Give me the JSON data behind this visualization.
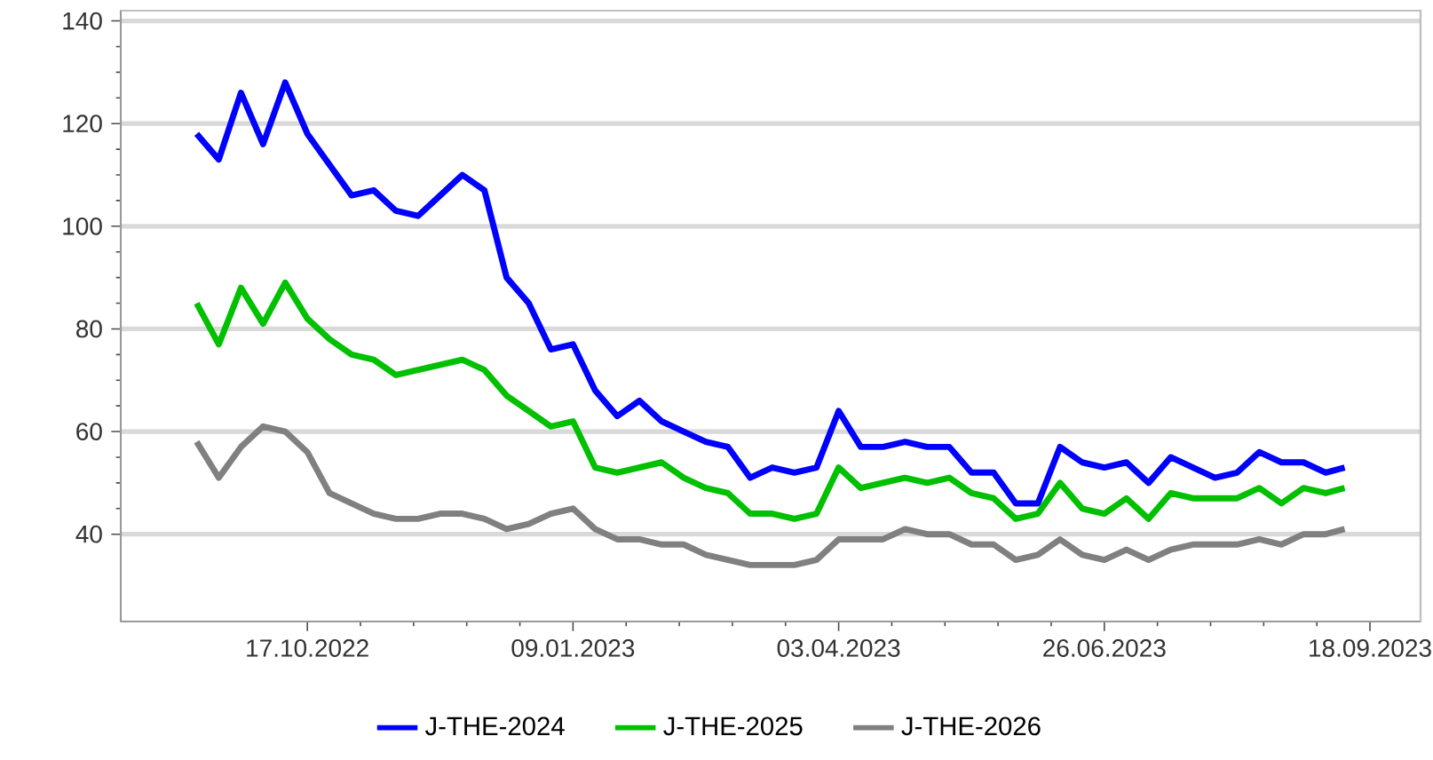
{
  "chart_data": {
    "type": "line",
    "x": [
      "2022-09-12",
      "2022-09-19",
      "2022-09-26",
      "2022-10-03",
      "2022-10-10",
      "2022-10-17",
      "2022-10-24",
      "2022-10-31",
      "2022-11-07",
      "2022-11-14",
      "2022-11-21",
      "2022-11-28",
      "2022-12-05",
      "2022-12-12",
      "2022-12-19",
      "2022-12-26",
      "2023-01-02",
      "2023-01-09",
      "2023-01-16",
      "2023-01-23",
      "2023-01-30",
      "2023-02-06",
      "2023-02-13",
      "2023-02-20",
      "2023-02-27",
      "2023-03-06",
      "2023-03-13",
      "2023-03-20",
      "2023-03-27",
      "2023-04-03",
      "2023-04-10",
      "2023-04-17",
      "2023-04-24",
      "2023-05-01",
      "2023-05-08",
      "2023-05-15",
      "2023-05-22",
      "2023-05-29",
      "2023-06-05",
      "2023-06-12",
      "2023-06-19",
      "2023-06-26",
      "2023-07-03",
      "2023-07-10",
      "2023-07-17",
      "2023-07-24",
      "2023-07-31",
      "2023-08-07",
      "2023-08-14",
      "2023-08-21",
      "2023-08-28",
      "2023-09-04",
      "2023-09-10"
    ],
    "series": [
      {
        "name": "J-THE-2024",
        "color": "#0000ff",
        "values": [
          118,
          113,
          126,
          116,
          128,
          118,
          112,
          106,
          107,
          103,
          102,
          106,
          110,
          107,
          90,
          85,
          76,
          77,
          68,
          63,
          66,
          62,
          60,
          58,
          57,
          51,
          53,
          52,
          53,
          64,
          57,
          57,
          58,
          57,
          57,
          52,
          52,
          46,
          46,
          57,
          54,
          53,
          54,
          50,
          55,
          53,
          51,
          52,
          56,
          54,
          54,
          52,
          53
        ]
      },
      {
        "name": "J-THE-2025",
        "color": "#00c000",
        "values": [
          85,
          77,
          88,
          81,
          89,
          82,
          78,
          75,
          74,
          71,
          72,
          73,
          74,
          72,
          67,
          64,
          61,
          62,
          53,
          52,
          53,
          54,
          51,
          49,
          48,
          44,
          44,
          43,
          44,
          53,
          49,
          50,
          51,
          50,
          51,
          48,
          47,
          43,
          44,
          50,
          45,
          44,
          47,
          43,
          48,
          47,
          47,
          47,
          49,
          46,
          49,
          48,
          49
        ]
      },
      {
        "name": "J-THE-2026",
        "color": "#808080",
        "values": [
          58,
          51,
          57,
          61,
          60,
          56,
          48,
          46,
          44,
          43,
          43,
          44,
          44,
          43,
          41,
          42,
          44,
          45,
          41,
          39,
          39,
          38,
          38,
          36,
          35,
          34,
          34,
          34,
          35,
          39,
          39,
          39,
          41,
          40,
          40,
          38,
          38,
          35,
          36,
          39,
          36,
          35,
          37,
          35,
          37,
          38,
          38,
          38,
          39,
          38,
          40,
          40,
          41
        ]
      }
    ],
    "xlim": [
      "2022-08-19",
      "2023-10-04"
    ],
    "xticks": [
      {
        "value": "2022-10-17",
        "label": "17.10.2022"
      },
      {
        "value": "2023-01-09",
        "label": "09.01.2023"
      },
      {
        "value": "2023-04-03",
        "label": "03.04.2023"
      },
      {
        "value": "2023-06-26",
        "label": "26.06.2023"
      },
      {
        "value": "2023-09-18",
        "label": "18.09.2023"
      }
    ],
    "ylim": [
      23,
      142
    ],
    "yticks": [
      40,
      60,
      80,
      100,
      120,
      140
    ],
    "grid": "y",
    "legend": "bottom",
    "marker": "none",
    "line_style": "solid"
  }
}
